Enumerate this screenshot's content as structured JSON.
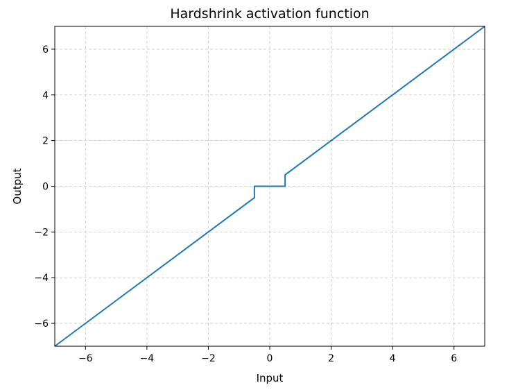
{
  "chart_data": {
    "type": "line",
    "title": "Hardshrink activation function",
    "xlabel": "Input",
    "ylabel": "Output",
    "xlim": [
      -7,
      7
    ],
    "ylim": [
      -7,
      7
    ],
    "grid": true,
    "x_ticks": [
      {
        "value": -6,
        "label": "−6"
      },
      {
        "value": -4,
        "label": "−4"
      },
      {
        "value": -2,
        "label": "−2"
      },
      {
        "value": 0,
        "label": "0"
      },
      {
        "value": 2,
        "label": "2"
      },
      {
        "value": 4,
        "label": "4"
      },
      {
        "value": 6,
        "label": "6"
      }
    ],
    "y_ticks": [
      {
        "value": -6,
        "label": "−6"
      },
      {
        "value": -4,
        "label": "−4"
      },
      {
        "value": -2,
        "label": "−2"
      },
      {
        "value": 0,
        "label": "0"
      },
      {
        "value": 2,
        "label": "2"
      },
      {
        "value": 4,
        "label": "4"
      },
      {
        "value": 6,
        "label": "6"
      }
    ],
    "series": [
      {
        "color": "#1f77b4",
        "points": [
          [
            -7,
            -7
          ],
          [
            -0.5,
            -0.5
          ],
          [
            -0.5,
            0
          ],
          [
            0.5,
            0
          ],
          [
            0.5,
            0.5
          ],
          [
            7,
            7
          ]
        ]
      }
    ]
  }
}
